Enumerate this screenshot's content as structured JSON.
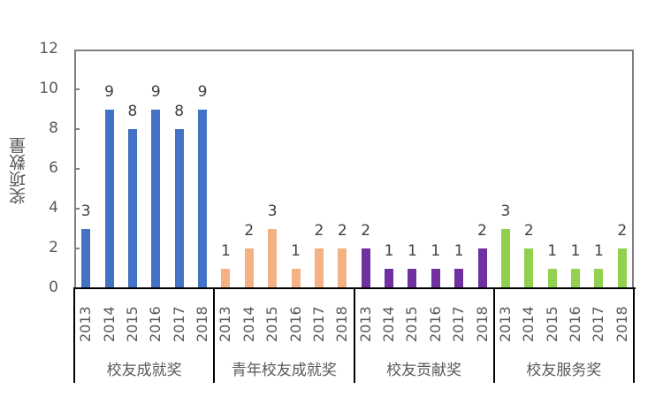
{
  "chart_data": {
    "type": "bar",
    "title": "",
    "xlabel": "",
    "ylabel": "奖项数量",
    "ylim": [
      0,
      12
    ],
    "yticks": [
      0,
      2,
      4,
      6,
      8,
      10,
      12
    ],
    "grid": false,
    "legend": null,
    "groups": [
      "校友成就奖",
      "青年校友成就奖",
      "校友贡献奖",
      "校友服务奖"
    ],
    "categories": [
      "2013",
      "2014",
      "2015",
      "2016",
      "2017",
      "2018"
    ],
    "series": [
      {
        "name": "校友成就奖",
        "color": "#4472C4",
        "values": [
          3,
          9,
          8,
          9,
          8,
          9
        ]
      },
      {
        "name": "青年校友成就奖",
        "color": "#F4B183",
        "values": [
          1,
          2,
          3,
          1,
          2,
          2
        ]
      },
      {
        "name": "校友贡献奖",
        "color": "#7030A0",
        "values": [
          2,
          1,
          1,
          1,
          1,
          2
        ]
      },
      {
        "name": "校友服务奖",
        "color": "#92D050",
        "values": [
          3,
          2,
          1,
          1,
          1,
          2
        ]
      }
    ],
    "data_labels": true
  }
}
